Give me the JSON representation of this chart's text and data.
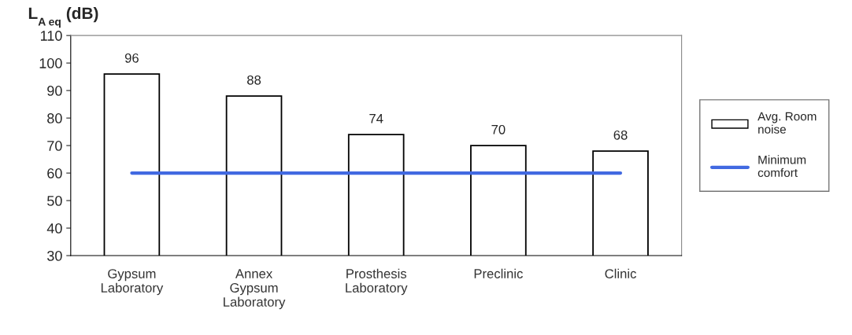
{
  "chart_data": {
    "type": "bar",
    "ylabel": "L$_{A eq}$ (dB)",
    "categories": [
      "Gypsum\nLaboratory",
      "Annex\nGypsum\nLaboratory",
      "Prosthesis\nLaboratory",
      "Preclinic",
      "Clinic"
    ],
    "series": [
      {
        "name": "Avg. Room\nnoise",
        "color": "#ffffff",
        "values": [
          96,
          88,
          74,
          70,
          68
        ],
        "value_labels": [
          "96",
          "88",
          "74",
          "70",
          "68"
        ]
      },
      {
        "name": "Minimum\ncomfort",
        "type": "line",
        "color": "#4169e1",
        "values": [
          60,
          60,
          60,
          60,
          60
        ]
      }
    ],
    "ylim": [
      30,
      110
    ],
    "yticks": [
      30,
      40,
      50,
      60,
      70,
      80,
      90,
      100,
      110
    ],
    "grid": false,
    "legend": "right"
  }
}
